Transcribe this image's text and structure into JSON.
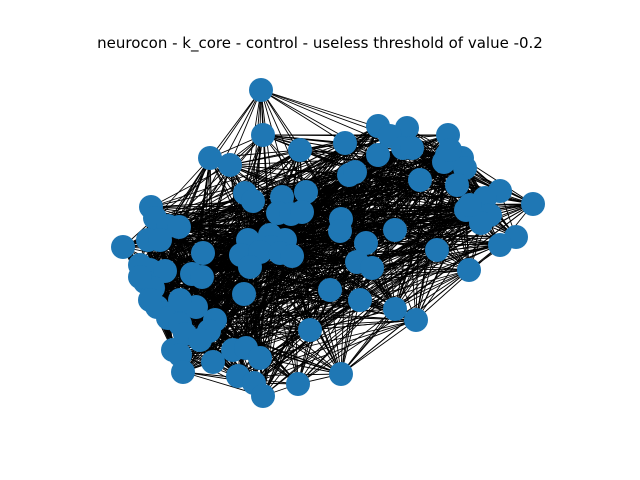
{
  "figure": {
    "title": "neurocon - k_core - control - useless threshold of value -0.2"
  },
  "graph_style": {
    "node_color": "#1f77b4",
    "edge_color": "#000000",
    "background": "#ffffff"
  }
}
